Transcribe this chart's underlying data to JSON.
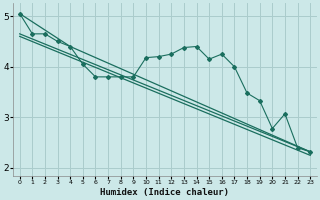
{
  "xlabel": "Humidex (Indice chaleur)",
  "ylabel": "",
  "bg_color": "#cce8e8",
  "grid_color": "#aacccc",
  "line_color": "#1a6e5e",
  "xlim": [
    -0.5,
    23.5
  ],
  "ylim": [
    1.85,
    5.25
  ],
  "yticks": [
    2,
    3,
    4,
    5
  ],
  "xticks": [
    0,
    1,
    2,
    3,
    4,
    5,
    6,
    7,
    8,
    9,
    10,
    11,
    12,
    13,
    14,
    15,
    16,
    17,
    18,
    19,
    20,
    21,
    22,
    23
  ],
  "series1_x": [
    0,
    1,
    2,
    3,
    4,
    5,
    6,
    7,
    8,
    9,
    10,
    11,
    12,
    13,
    14,
    15,
    16,
    17,
    18,
    19,
    20,
    21,
    22,
    23
  ],
  "series1_y": [
    5.05,
    4.65,
    4.65,
    4.5,
    4.4,
    4.05,
    3.8,
    3.8,
    3.8,
    3.8,
    4.18,
    4.2,
    4.25,
    4.38,
    4.4,
    4.15,
    4.25,
    4.0,
    3.48,
    3.33,
    2.78,
    3.07,
    2.4,
    2.32
  ],
  "series2_x": [
    0,
    23
  ],
  "series2_y": [
    4.65,
    2.32
  ],
  "series3_x": [
    0,
    23
  ],
  "series3_y": [
    4.6,
    2.25
  ],
  "series4_x": [
    0,
    4,
    23
  ],
  "series4_y": [
    5.05,
    4.4,
    2.32
  ]
}
